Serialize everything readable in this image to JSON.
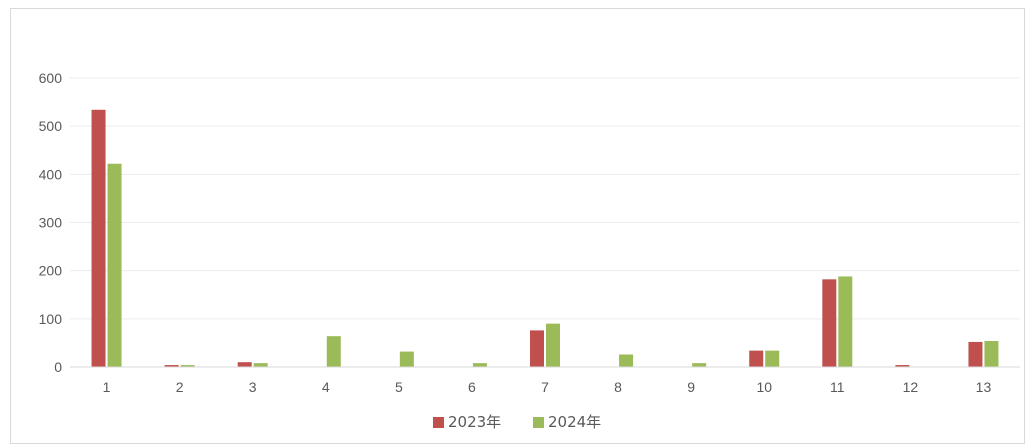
{
  "chart_data": {
    "type": "bar",
    "categories": [
      "1",
      "2",
      "3",
      "4",
      "5",
      "6",
      "7",
      "8",
      "9",
      "10",
      "11",
      "12",
      "13"
    ],
    "series": [
      {
        "name": "2023年",
        "color": "#c0504d",
        "values": [
          534,
          4,
          10,
          0,
          0,
          0,
          76,
          0,
          0,
          34,
          182,
          4,
          52
        ]
      },
      {
        "name": "2024年",
        "color": "#9bbb59",
        "values": [
          422,
          4,
          8,
          64,
          32,
          8,
          90,
          26,
          8,
          34,
          188,
          0,
          54
        ]
      }
    ],
    "y_ticks": [
      "0",
      "100",
      "200",
      "300",
      "400",
      "500",
      "600"
    ],
    "ylim": [
      0,
      600
    ],
    "grid": true,
    "legend_position": "bottom-center"
  }
}
